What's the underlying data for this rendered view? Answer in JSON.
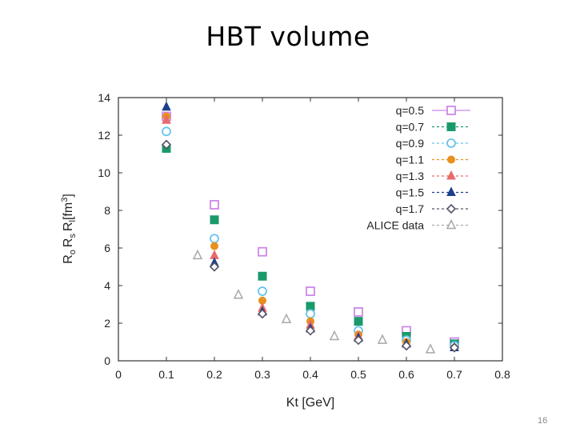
{
  "slide": {
    "title": "HBT volume",
    "page_number": "16"
  },
  "chart_data": {
    "type": "scatter",
    "title": "",
    "xlabel": "Kt [GeV]",
    "ylabel": "R_o R_s R_l [fm^3]",
    "ylabel_parts": {
      "r": "R",
      "s1": "o",
      "s2": "s",
      "s3": "l",
      "unit": "[fm",
      "exp": "3",
      "close": "]"
    },
    "xlim": [
      0,
      0.8
    ],
    "ylim": [
      0,
      14
    ],
    "xticks": [
      0,
      0.1,
      0.2,
      0.3,
      0.4,
      0.5,
      0.6,
      0.7,
      0.8
    ],
    "yticks": [
      0,
      2,
      4,
      6,
      8,
      10,
      12,
      14
    ],
    "legend_position": "top-right",
    "grid": false,
    "series": [
      {
        "name": "q=0.5",
        "marker": "open-square",
        "color": "#cc88e8",
        "x": [
          0.1,
          0.2,
          0.3,
          0.4,
          0.5,
          0.6,
          0.7
        ],
        "y": [
          13.0,
          8.3,
          5.8,
          3.7,
          2.6,
          1.6,
          1.0
        ]
      },
      {
        "name": "q=0.7",
        "marker": "filled-square",
        "color": "#1a9a6a",
        "x": [
          0.1,
          0.2,
          0.3,
          0.4,
          0.5,
          0.6,
          0.7
        ],
        "y": [
          11.3,
          7.5,
          4.5,
          2.9,
          2.1,
          1.3,
          0.9
        ]
      },
      {
        "name": "q=0.9",
        "marker": "open-circle",
        "color": "#66c4ec",
        "x": [
          0.1,
          0.2,
          0.3,
          0.4,
          0.5,
          0.6,
          0.7
        ],
        "y": [
          12.2,
          6.5,
          3.7,
          2.5,
          1.6,
          1.1,
          0.8
        ]
      },
      {
        "name": "q=1.1",
        "marker": "filled-circle",
        "color": "#e8901c",
        "x": [
          0.1,
          0.2,
          0.3,
          0.4,
          0.5,
          0.6,
          0.7
        ],
        "y": [
          13.0,
          6.1,
          3.2,
          2.1,
          1.4,
          1.0,
          0.7
        ]
      },
      {
        "name": "q=1.3",
        "marker": "filled-triangle",
        "color": "#e86a6a",
        "x": [
          0.1,
          0.2,
          0.3,
          0.4,
          0.5,
          0.6,
          0.7
        ],
        "y": [
          12.8,
          5.6,
          2.8,
          1.9,
          1.3,
          0.9,
          0.7
        ]
      },
      {
        "name": "q=1.5",
        "marker": "filled-triangle",
        "color": "#1c3f8a",
        "x": [
          0.1,
          0.2,
          0.3,
          0.4,
          0.5,
          0.6,
          0.7
        ],
        "y": [
          13.5,
          5.2,
          2.6,
          1.7,
          1.2,
          0.9,
          0.7
        ]
      },
      {
        "name": "q=1.7",
        "marker": "open-diamond",
        "color": "#555566",
        "x": [
          0.1,
          0.2,
          0.3,
          0.4,
          0.5,
          0.6,
          0.7
        ],
        "y": [
          11.5,
          5.0,
          2.5,
          1.6,
          1.1,
          0.8,
          0.7
        ]
      },
      {
        "name": "ALICE data",
        "marker": "open-triangle",
        "color": "#a8a8a8",
        "x": [
          0.165,
          0.25,
          0.35,
          0.45,
          0.55,
          0.65
        ],
        "y": [
          5.6,
          3.5,
          2.2,
          1.3,
          1.1,
          0.6
        ]
      }
    ]
  }
}
